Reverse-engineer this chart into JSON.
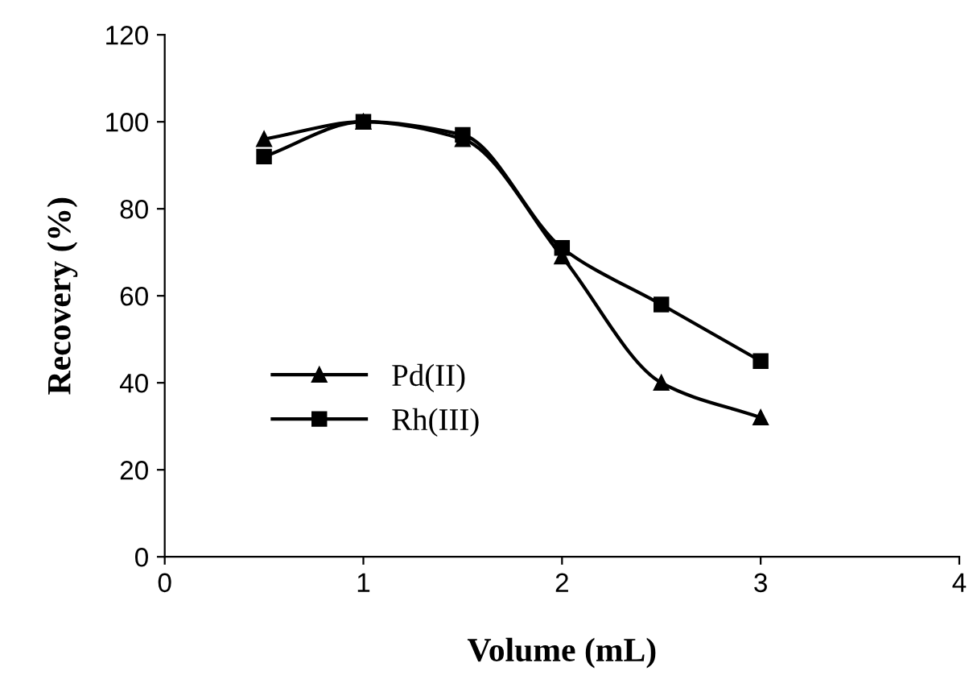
{
  "chart_data": {
    "type": "line",
    "xlabel": "Volume (mL)",
    "ylabel": "Recovery (%)",
    "x": [
      0.5,
      1,
      1.5,
      2,
      2.5,
      3
    ],
    "series": [
      {
        "name": "Pd(II)",
        "color": "#000000",
        "marker": "triangle",
        "values": [
          96,
          100,
          96,
          69,
          40,
          32
        ]
      },
      {
        "name": "Rh(III)",
        "color": "#000000",
        "marker": "square",
        "values": [
          92,
          100,
          97,
          71,
          58,
          45
        ]
      }
    ],
    "xlim": [
      0,
      4
    ],
    "xticks": [
      0,
      1,
      2,
      3,
      4
    ],
    "ylim": [
      0,
      120
    ],
    "yticks": [
      0,
      20,
      40,
      60,
      80,
      100,
      120
    ],
    "grid": false,
    "legend": "left",
    "line_style": "solid"
  }
}
